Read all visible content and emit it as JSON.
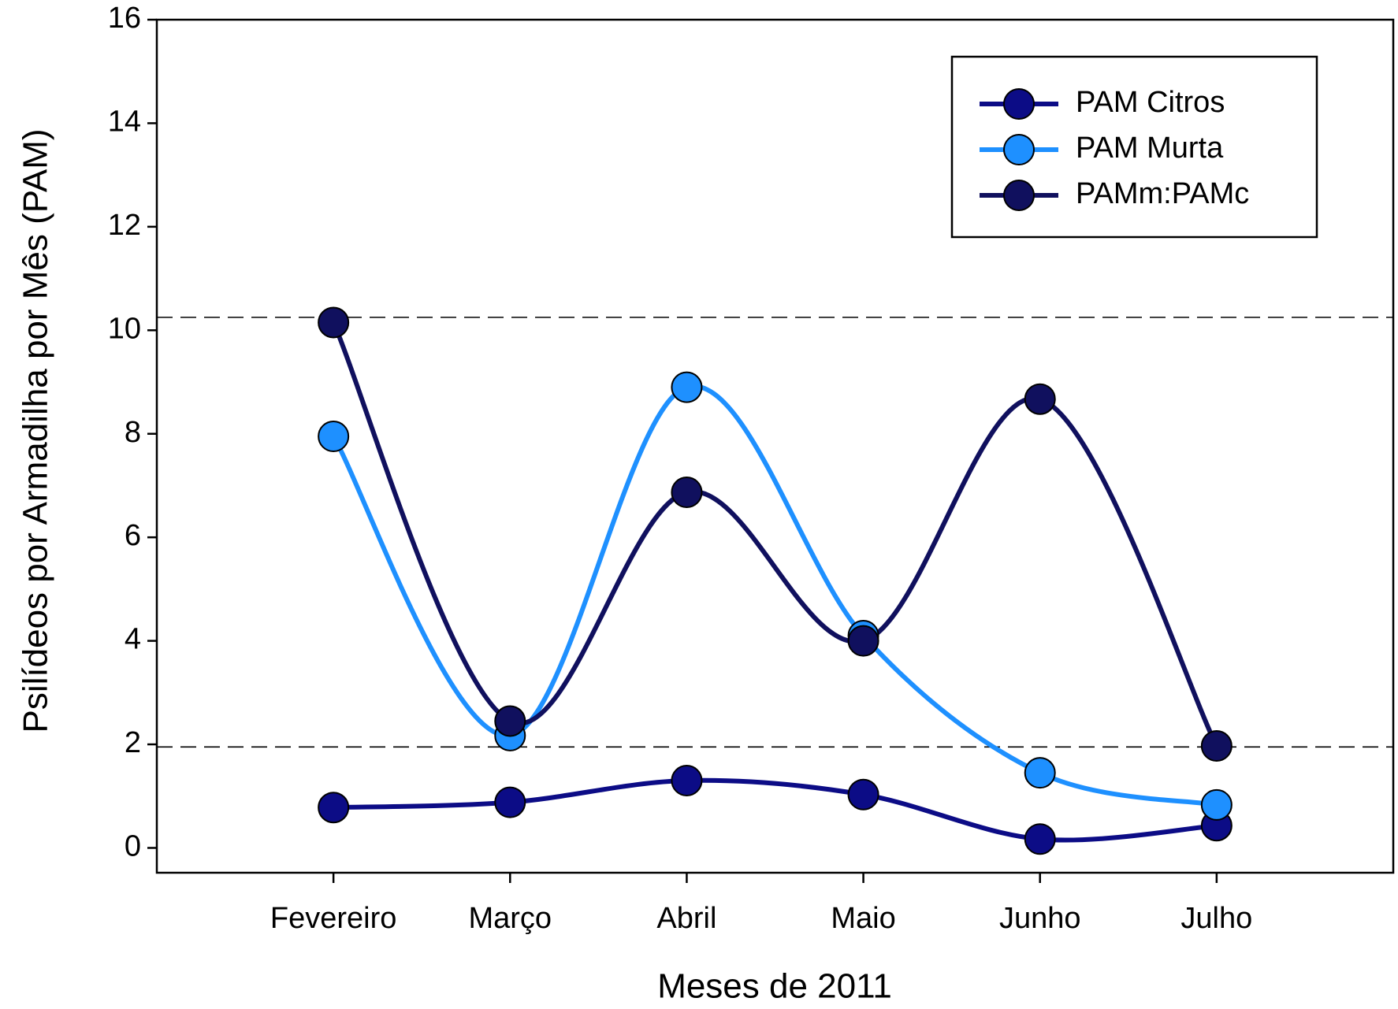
{
  "chart_data": {
    "type": "line",
    "x_label": "Meses de 2011",
    "y_label": "Psilídeos por Armadilha por Mês (PAM)",
    "categories": [
      "Fevereiro",
      "Março",
      "Abril",
      "Maio",
      "Junho",
      "Julho"
    ],
    "series": [
      {
        "name": "PAM Citros",
        "color": "#0c0c86",
        "values": [
          0.78,
          0.88,
          1.3,
          1.03,
          0.17,
          0.43
        ]
      },
      {
        "name": "PAM Murta",
        "color": "#1e90ff",
        "values": [
          7.95,
          2.17,
          8.9,
          4.1,
          1.45,
          0.83
        ]
      },
      {
        "name": "PAMm:PAMc",
        "color": "#10105e",
        "values": [
          10.15,
          2.45,
          6.87,
          4.0,
          8.67,
          1.97
        ]
      }
    ],
    "ylim": [
      -0.48,
      16
    ],
    "yticks": [
      0,
      2,
      4,
      6,
      8,
      10,
      12,
      14,
      16
    ],
    "reference_lines": [
      10.25,
      1.95
    ],
    "smooth": true,
    "legend": "upper right"
  }
}
